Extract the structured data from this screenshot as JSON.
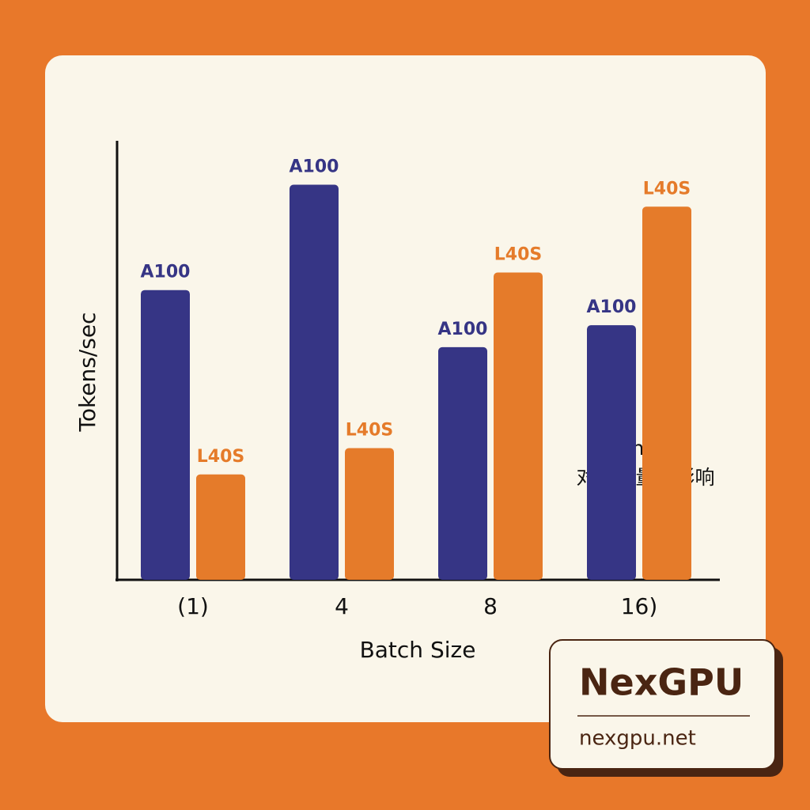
{
  "chart_data": {
    "type": "bar",
    "categories": [
      "(1)",
      "4",
      "8",
      "16)"
    ],
    "series": [
      {
        "name": "A100",
        "color": "#363585",
        "values": [
          66,
          90,
          53,
          58
        ]
      },
      {
        "name": "L40S",
        "color": "#e57b2a",
        "values": [
          24,
          30,
          70,
          85
        ]
      }
    ],
    "ylim": [
      0,
      100
    ],
    "xlabel": "Batch Size",
    "ylabel": "Tokens/sec",
    "annotation": [
      "Batch Size",
      "对吞吐量的影响"
    ]
  },
  "watermark": {
    "title": "NexGPU",
    "url": "nexgpu.net"
  }
}
